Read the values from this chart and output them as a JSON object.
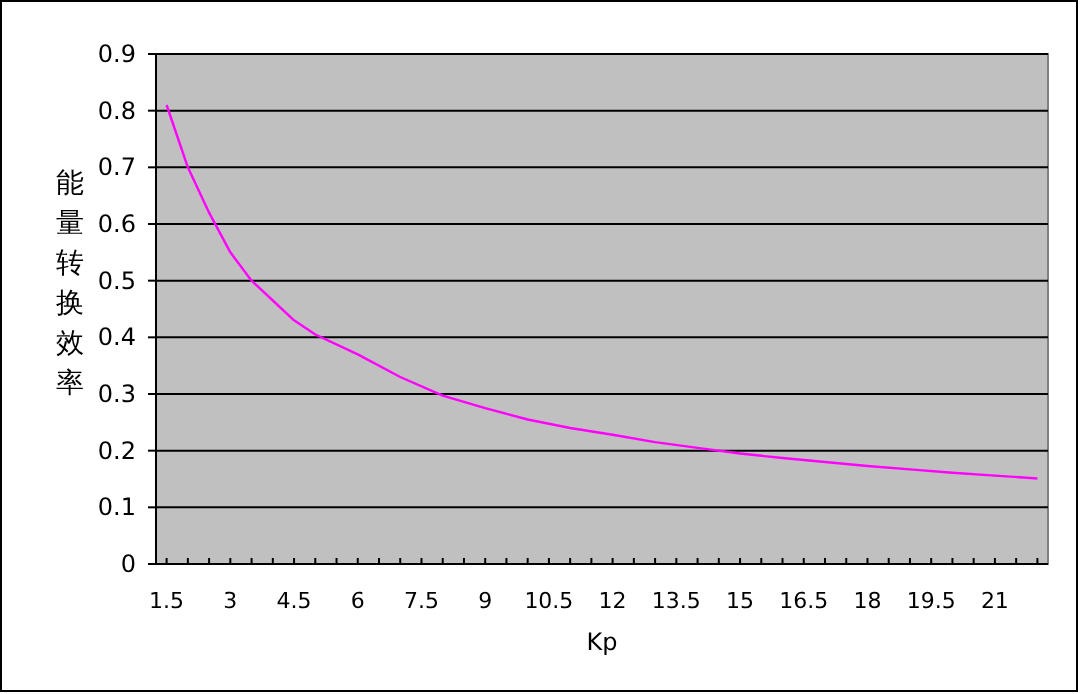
{
  "chart_data": {
    "type": "line",
    "xlabel": "Kp",
    "ylabel": "能量转换效率",
    "x": [
      1.5,
      2,
      2.5,
      3,
      3.5,
      4,
      4.5,
      5,
      6,
      7,
      8,
      9,
      10,
      11,
      12,
      13,
      14,
      15,
      16,
      17,
      18,
      19,
      20,
      21,
      22
    ],
    "series": [
      {
        "color": "#ff00ff",
        "values": [
          0.81,
          0.7,
          0.62,
          0.55,
          0.5,
          0.465,
          0.43,
          0.405,
          0.37,
          0.33,
          0.297,
          0.275,
          0.255,
          0.24,
          0.228,
          0.215,
          0.205,
          0.195,
          0.187,
          0.18,
          0.173,
          0.167,
          0.161,
          0.156,
          0.151
        ]
      }
    ],
    "xlim": [
      1.25,
      22.25
    ],
    "xticks": [
      1.5,
      {
        "value": 2,
        "label": null
      },
      {
        "value": 2.5,
        "label": null
      },
      3,
      {
        "value": 3.5,
        "label": null
      },
      {
        "value": 4,
        "label": null
      },
      4.5,
      {
        "value": 5,
        "label": null
      },
      {
        "value": 5.5,
        "label": null
      },
      6,
      {
        "value": 6.5,
        "label": null
      },
      {
        "value": 7,
        "label": null
      },
      7.5,
      {
        "value": 8,
        "label": null
      },
      {
        "value": 8.5,
        "label": null
      },
      9,
      {
        "value": 9.5,
        "label": null
      },
      {
        "value": 10,
        "label": null
      },
      10.5,
      {
        "value": 11,
        "label": null
      },
      {
        "value": 11.5,
        "label": null
      },
      12,
      {
        "value": 12.5,
        "label": null
      },
      {
        "value": 13,
        "label": null
      },
      13.5,
      {
        "value": 14,
        "label": null
      },
      {
        "value": 14.5,
        "label": null
      },
      15,
      {
        "value": 15.5,
        "label": null
      },
      {
        "value": 16,
        "label": null
      },
      16.5,
      {
        "value": 17,
        "label": null
      },
      {
        "value": 17.5,
        "label": null
      },
      18,
      {
        "value": 18.5,
        "label": null
      },
      {
        "value": 19,
        "label": null
      },
      19.5,
      {
        "value": 20,
        "label": null
      },
      {
        "value": 20.5,
        "label": null
      },
      21,
      {
        "value": 21.5,
        "label": null
      },
      {
        "value": 22,
        "label": null
      }
    ],
    "ylim": [
      0,
      0.9
    ],
    "yticks": [
      0,
      0.1,
      0.2,
      0.3,
      0.4,
      0.5,
      0.6,
      0.7,
      0.8,
      0.9
    ],
    "grid": "y",
    "marker": "none",
    "line_style": "solid"
  }
}
